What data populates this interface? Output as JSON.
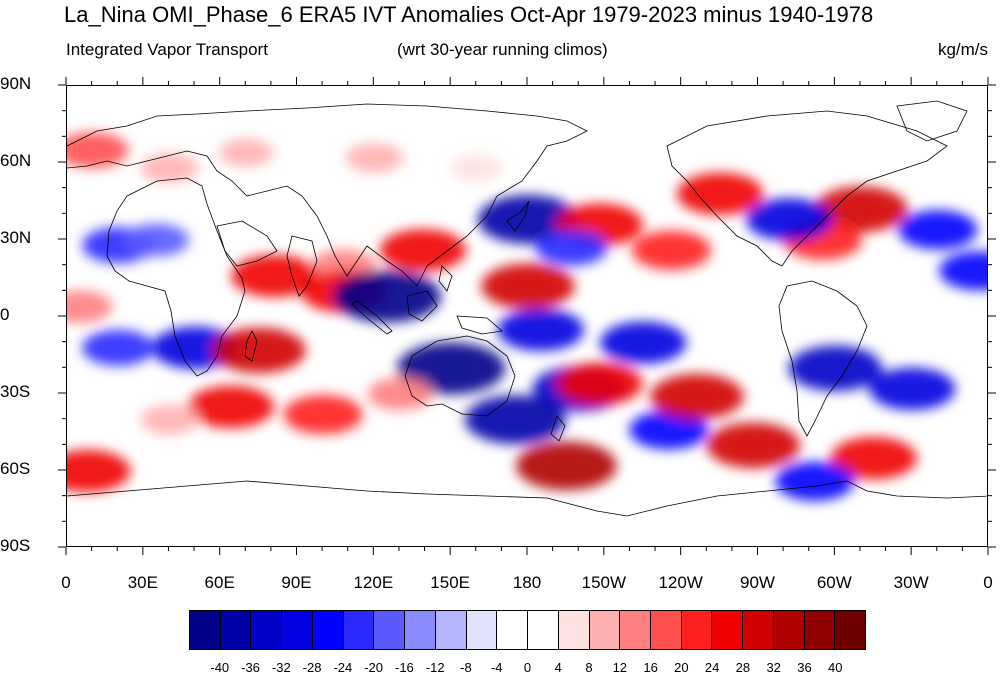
{
  "header": {
    "title": "La_Nina OMI_Phase_6 ERA5 IVT Anomalies Oct-Apr 1979-2023 minus 1940-1978",
    "left_string": "Integrated Vapor Transport",
    "center_string": "(wrt 30-year running climos)",
    "right_string": "kg/m/s"
  },
  "map": {
    "lat_labels": [
      "90N",
      "60N",
      "30N",
      "0",
      "30S",
      "60S",
      "90S"
    ],
    "lon_labels": [
      "0",
      "30E",
      "60E",
      "90E",
      "120E",
      "150E",
      "180",
      "150W",
      "120W",
      "90W",
      "60W",
      "30W",
      "0"
    ],
    "lat_range": [
      -90,
      90
    ],
    "lon_range": [
      0,
      360
    ],
    "coastline_color": "#000000"
  },
  "colorbar": {
    "labels": [
      "-40",
      "-36",
      "-32",
      "-28",
      "-24",
      "-20",
      "-16",
      "-12",
      "-8",
      "-4",
      "0",
      "4",
      "8",
      "12",
      "16",
      "20",
      "24",
      "28",
      "32",
      "36",
      "40"
    ],
    "colors": [
      "#00008a",
      "#0000a8",
      "#0000c8",
      "#0000e0",
      "#0000ff",
      "#2a2aff",
      "#5a5aff",
      "#8a8aff",
      "#b4b4ff",
      "#e2e2ff",
      "#ffffff",
      "#ffffff",
      "#ffe0e0",
      "#ffb0b0",
      "#ff8080",
      "#ff5050",
      "#ff2020",
      "#f00000",
      "#d00000",
      "#b00000",
      "#900000",
      "#700000"
    ]
  },
  "anomaly_regions": [
    {
      "lon": 10,
      "lat": 65,
      "value": 20
    },
    {
      "lon": 40,
      "lat": 58,
      "value": 12
    },
    {
      "lon": 70,
      "lat": 64,
      "value": 10
    },
    {
      "lon": 120,
      "lat": 62,
      "value": 12
    },
    {
      "lon": 160,
      "lat": 58,
      "value": 8
    },
    {
      "lon": 255,
      "lat": 48,
      "value": 28
    },
    {
      "lon": 310,
      "lat": 42,
      "value": 32
    },
    {
      "lon": 295,
      "lat": 30,
      "value": 24
    },
    {
      "lon": 340,
      "lat": 34,
      "value": -24
    },
    {
      "lon": 282,
      "lat": 38,
      "value": -28
    },
    {
      "lon": 180,
      "lat": 38,
      "value": -36
    },
    {
      "lon": 208,
      "lat": 36,
      "value": 28
    },
    {
      "lon": 197,
      "lat": 27,
      "value": -20
    },
    {
      "lon": 236,
      "lat": 26,
      "value": 24
    },
    {
      "lon": 139,
      "lat": 26,
      "value": 28
    },
    {
      "lon": 108,
      "lat": 20,
      "value": 16
    },
    {
      "lon": 81,
      "lat": 16,
      "value": 28
    },
    {
      "lon": 20,
      "lat": 28,
      "value": -20
    },
    {
      "lon": 35,
      "lat": 30,
      "value": -16
    },
    {
      "lon": 356,
      "lat": 18,
      "value": -24
    },
    {
      "lon": 5,
      "lat": 4,
      "value": 16
    },
    {
      "lon": 108,
      "lat": 10,
      "value": 28
    },
    {
      "lon": 180,
      "lat": 12,
      "value": 32
    },
    {
      "lon": 125,
      "lat": 8,
      "value": -40
    },
    {
      "lon": 185,
      "lat": -5,
      "value": -28
    },
    {
      "lon": 150,
      "lat": -20,
      "value": -40
    },
    {
      "lon": 200,
      "lat": -28,
      "value": -32
    },
    {
      "lon": 225,
      "lat": -10,
      "value": -28
    },
    {
      "lon": 175,
      "lat": -40,
      "value": -36
    },
    {
      "lon": 235,
      "lat": -44,
      "value": -24
    },
    {
      "lon": 300,
      "lat": -20,
      "value": -32
    },
    {
      "lon": 330,
      "lat": -28,
      "value": -28
    },
    {
      "lon": 50,
      "lat": -12,
      "value": -28
    },
    {
      "lon": 20,
      "lat": -12,
      "value": -20
    },
    {
      "lon": 75,
      "lat": -13,
      "value": 32
    },
    {
      "lon": 64,
      "lat": -35,
      "value": 28
    },
    {
      "lon": 100,
      "lat": -38,
      "value": 24
    },
    {
      "lon": 130,
      "lat": -30,
      "value": 16
    },
    {
      "lon": 208,
      "lat": -26,
      "value": 28
    },
    {
      "lon": 246,
      "lat": -31,
      "value": 32
    },
    {
      "lon": 8,
      "lat": -60,
      "value": 28
    },
    {
      "lon": 195,
      "lat": -58,
      "value": 36
    },
    {
      "lon": 268,
      "lat": -50,
      "value": 32
    },
    {
      "lon": 315,
      "lat": -55,
      "value": 28
    },
    {
      "lon": 292,
      "lat": -64,
      "value": -24
    },
    {
      "lon": 40,
      "lat": -40,
      "value": 12
    }
  ]
}
